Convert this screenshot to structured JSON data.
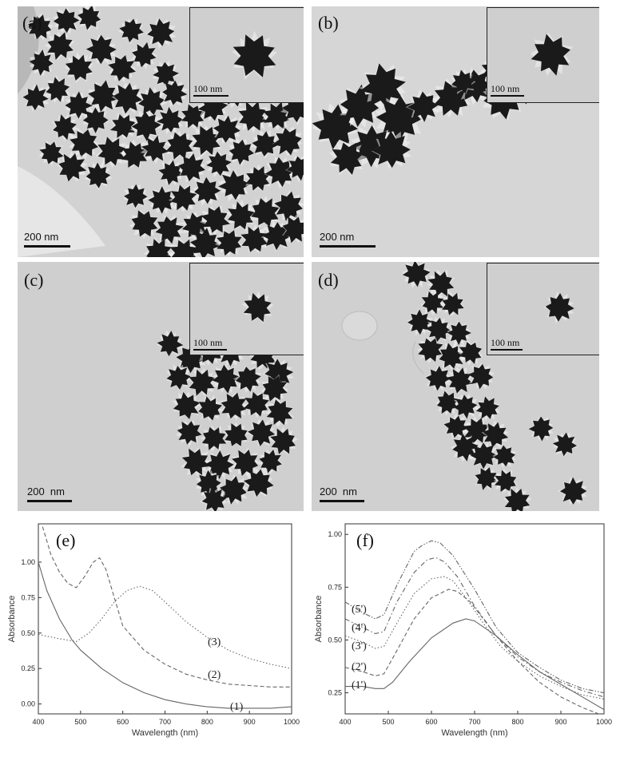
{
  "panels": {
    "a": {
      "label": "(a)",
      "scale": "200 nm",
      "inset_scale": "100 nm"
    },
    "b": {
      "label": "(b)",
      "scale": "200 nm",
      "inset_scale": "100 nm"
    },
    "c": {
      "label": "(c)",
      "scale": "200  nm",
      "inset_scale": "100 nm"
    },
    "d": {
      "label": "(d)",
      "scale": "200  nm",
      "inset_scale": "100 nm"
    }
  },
  "colors": {
    "particle": "#1a1a1a",
    "background": "#c4c4c4",
    "curve": "#777777"
  },
  "chart_data": [
    {
      "panel_label": "(e)",
      "type": "line",
      "xlabel": "Wavelength (nm)",
      "ylabel": "Absorbance",
      "xlim": [
        400,
        1000
      ],
      "ylim": [
        -0.07,
        1.27
      ],
      "x_ticks": [
        400,
        500,
        600,
        700,
        800,
        900,
        1000
      ],
      "y_ticks": [
        0.0,
        0.25,
        0.5,
        0.75,
        1.0
      ],
      "y_tick_labels": [
        "0.00",
        "0.25",
        "0.50",
        "0.75",
        "1.00"
      ],
      "series": [
        {
          "name": "(1)",
          "style": "solid",
          "x": [
            400,
            420,
            450,
            480,
            500,
            550,
            600,
            650,
            700,
            750,
            800,
            850,
            900,
            950,
            1000
          ],
          "y": [
            1.0,
            0.8,
            0.6,
            0.45,
            0.38,
            0.25,
            0.15,
            0.08,
            0.03,
            0.0,
            -0.02,
            -0.03,
            -0.03,
            -0.03,
            -0.02
          ]
        },
        {
          "name": "(2)",
          "style": "dashed",
          "x": [
            410,
            430,
            450,
            470,
            490,
            510,
            530,
            545,
            560,
            580,
            600,
            650,
            700,
            750,
            800,
            850,
            900,
            950,
            1000
          ],
          "y": [
            1.25,
            1.05,
            0.93,
            0.85,
            0.82,
            0.9,
            1.0,
            1.03,
            0.95,
            0.75,
            0.55,
            0.38,
            0.28,
            0.21,
            0.17,
            0.14,
            0.13,
            0.12,
            0.12
          ]
        },
        {
          "name": "(3)",
          "style": "dotted",
          "x": [
            400,
            450,
            490,
            520,
            550,
            580,
            610,
            640,
            670,
            700,
            750,
            800,
            850,
            900,
            950,
            1000
          ],
          "y": [
            0.49,
            0.46,
            0.44,
            0.5,
            0.6,
            0.72,
            0.8,
            0.83,
            0.8,
            0.72,
            0.58,
            0.47,
            0.38,
            0.32,
            0.28,
            0.25
          ]
        }
      ]
    },
    {
      "panel_label": "(f)",
      "type": "line",
      "xlabel": "Wavelength (nm)",
      "ylabel": "Absorbance",
      "xlim": [
        400,
        1000
      ],
      "ylim": [
        0.15,
        1.05
      ],
      "x_ticks": [
        400,
        500,
        600,
        700,
        800,
        900,
        1000
      ],
      "y_ticks": [
        0.25,
        0.5,
        0.75,
        1.0
      ],
      "y_tick_labels": [
        "0.25",
        "0.50",
        "0.75",
        "1.00"
      ],
      "series": [
        {
          "name": "(1')",
          "style": "solid",
          "x": [
            400,
            440,
            470,
            490,
            510,
            550,
            600,
            650,
            680,
            700,
            750,
            800,
            850,
            900,
            950,
            1000
          ],
          "y": [
            0.28,
            0.28,
            0.27,
            0.27,
            0.3,
            0.4,
            0.51,
            0.58,
            0.6,
            0.59,
            0.52,
            0.43,
            0.35,
            0.29,
            0.23,
            0.17
          ]
        },
        {
          "name": "(2')",
          "style": "dashed",
          "x": [
            400,
            440,
            470,
            490,
            520,
            560,
            600,
            640,
            660,
            690,
            720,
            750,
            800,
            850,
            900,
            950,
            1000
          ],
          "y": [
            0.37,
            0.35,
            0.33,
            0.34,
            0.45,
            0.6,
            0.7,
            0.74,
            0.73,
            0.68,
            0.6,
            0.52,
            0.4,
            0.3,
            0.23,
            0.18,
            0.14
          ]
        },
        {
          "name": "(3')",
          "style": "dotted",
          "x": [
            400,
            440,
            470,
            490,
            520,
            560,
            600,
            630,
            650,
            680,
            720,
            760,
            800,
            850,
            900,
            950,
            1000
          ],
          "y": [
            0.52,
            0.49,
            0.46,
            0.47,
            0.58,
            0.72,
            0.79,
            0.8,
            0.78,
            0.7,
            0.58,
            0.47,
            0.4,
            0.33,
            0.28,
            0.24,
            0.22
          ]
        },
        {
          "name": "(4')",
          "style": "dashdot",
          "x": [
            400,
            440,
            470,
            490,
            520,
            560,
            590,
            610,
            630,
            660,
            700,
            750,
            800,
            850,
            900,
            950,
            1000
          ],
          "y": [
            0.6,
            0.56,
            0.53,
            0.54,
            0.68,
            0.82,
            0.88,
            0.89,
            0.87,
            0.8,
            0.66,
            0.52,
            0.42,
            0.35,
            0.3,
            0.26,
            0.23
          ]
        },
        {
          "name": "(5')",
          "style": "dashdotdot",
          "x": [
            400,
            440,
            470,
            490,
            520,
            560,
            580,
            600,
            620,
            650,
            700,
            750,
            800,
            850,
            900,
            950,
            1000
          ],
          "y": [
            0.68,
            0.63,
            0.6,
            0.62,
            0.76,
            0.92,
            0.95,
            0.97,
            0.96,
            0.9,
            0.74,
            0.56,
            0.44,
            0.37,
            0.31,
            0.27,
            0.25
          ]
        }
      ]
    }
  ]
}
